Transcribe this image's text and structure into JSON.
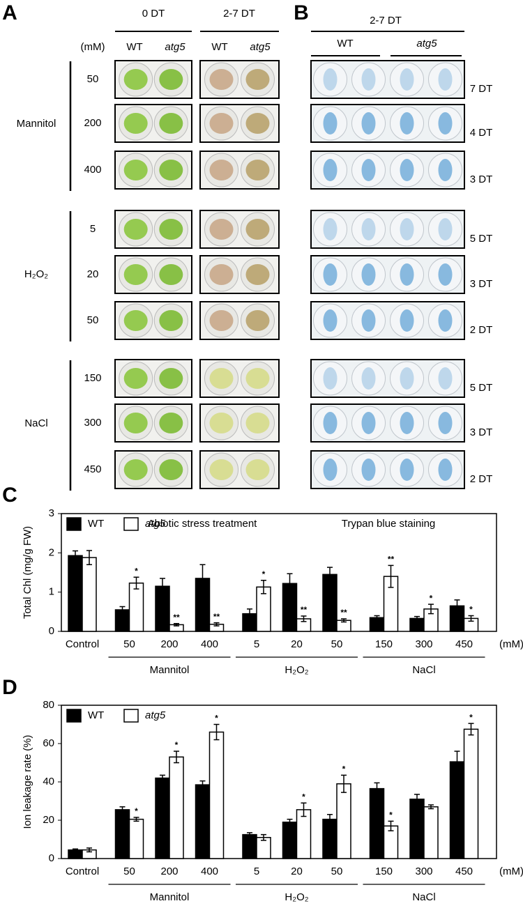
{
  "panels": {
    "A": {
      "letter": "A",
      "headers": [
        "0 DT",
        "2-7 DT"
      ],
      "genotypes": [
        "WT",
        "atg5",
        "WT",
        "atg5"
      ],
      "unit": "(mM)",
      "groups": [
        {
          "name": "Mannitol",
          "doses": [
            "50",
            "200",
            "400"
          ]
        },
        {
          "name": "H₂O₂",
          "doses": [
            "5",
            "20",
            "50"
          ]
        },
        {
          "name": "NaCl",
          "doses": [
            "150",
            "300",
            "450"
          ]
        }
      ],
      "caption": "Abiotic stress treatment"
    },
    "B": {
      "letter": "B",
      "header": "2-7 DT",
      "genotypes": [
        "WT",
        "atg5"
      ],
      "days": [
        "7 DT",
        "4 DT",
        "3 DT",
        "5 DT",
        "3 DT",
        "2 DT",
        "5 DT",
        "3 DT",
        "2 DT"
      ],
      "caption": "Trypan blue  staining"
    }
  },
  "chart_data": [
    {
      "type": "bar",
      "letter": "C",
      "ylabel": "Total Chl (mg/g FW)",
      "xlabel": "(mM)",
      "categories": [
        "Control",
        "50",
        "200",
        "400",
        "5",
        "20",
        "50",
        "150",
        "300",
        "450"
      ],
      "groups": [
        "Mannitol",
        "H₂O₂",
        "NaCl"
      ],
      "series": [
        {
          "name": "WT",
          "color": "#000000",
          "values": [
            1.93,
            0.55,
            1.15,
            1.35,
            0.45,
            1.22,
            1.45,
            0.35,
            0.33,
            0.65
          ],
          "errors": [
            0.12,
            0.08,
            0.2,
            0.35,
            0.12,
            0.25,
            0.18,
            0.05,
            0.05,
            0.15
          ]
        },
        {
          "name": "atg5",
          "color": "#ffffff",
          "values": [
            1.88,
            1.23,
            0.17,
            0.18,
            1.13,
            0.32,
            0.28,
            1.4,
            0.57,
            0.33
          ],
          "errors": [
            0.18,
            0.15,
            0.03,
            0.04,
            0.17,
            0.07,
            0.04,
            0.28,
            0.12,
            0.07
          ],
          "annotations": [
            null,
            "*",
            "**",
            "**",
            "*",
            "**",
            "**",
            "**",
            "*",
            "*"
          ]
        }
      ],
      "ylim": [
        0,
        3
      ],
      "yticks": [
        0,
        1,
        2,
        3
      ]
    },
    {
      "type": "bar",
      "letter": "D",
      "ylabel": "Ion leakage rate (%)",
      "xlabel": "(mM)",
      "categories": [
        "Control",
        "50",
        "200",
        "400",
        "5",
        "20",
        "50",
        "150",
        "300",
        "450"
      ],
      "groups": [
        "Mannitol",
        "H₂O₂",
        "NaCl"
      ],
      "series": [
        {
          "name": "WT",
          "color": "#000000",
          "values": [
            4.5,
            25.5,
            42,
            38.5,
            12.5,
            19,
            20.5,
            36.5,
            31,
            50.5
          ],
          "errors": [
            0.5,
            1.5,
            1.5,
            2,
            1,
            1.5,
            2.5,
            3,
            2.5,
            5.5
          ]
        },
        {
          "name": "atg5",
          "color": "#ffffff",
          "values": [
            4.5,
            20.5,
            53,
            66,
            11,
            25.5,
            39,
            17,
            27,
            67.5
          ],
          "errors": [
            1,
            1,
            3,
            4,
            1.5,
            3.5,
            4.5,
            2.5,
            1,
            3
          ],
          "annotations": [
            null,
            "*",
            "*",
            "*",
            null,
            "*",
            "*",
            "*",
            null,
            "*"
          ]
        }
      ],
      "ylim": [
        0,
        80
      ],
      "yticks": [
        0,
        20,
        40,
        60,
        80
      ]
    }
  ]
}
